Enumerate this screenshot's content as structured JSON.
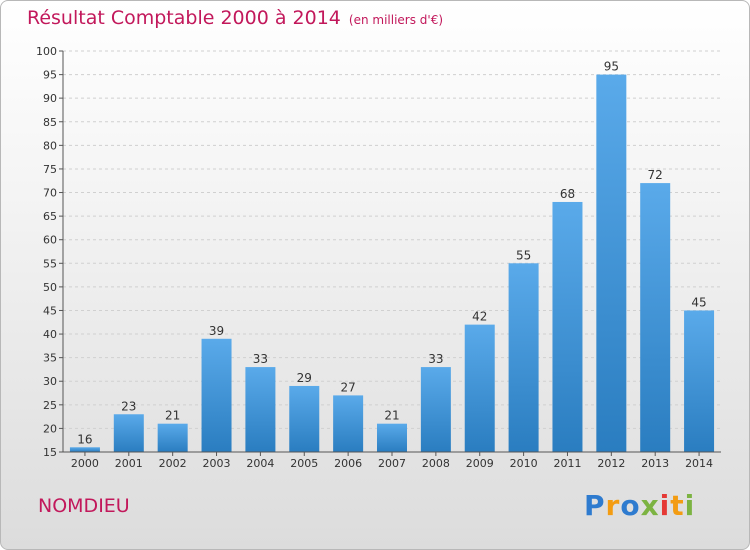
{
  "header": {
    "title": "Résultat Comptable 2000 à 2014",
    "subtitle": "(en milliers d'€)"
  },
  "location": "NOMDIEU",
  "brand": {
    "letters": [
      "P",
      "r",
      "o",
      "x",
      "i",
      "t",
      "i"
    ],
    "colors": [
      "#2e7bcf",
      "#f39c12",
      "#2e7bcf",
      "#7cb342",
      "#e53935",
      "#f39c12",
      "#7cb342"
    ]
  },
  "colors": {
    "bar_light": "#5aaaea",
    "bar_dark": "#2a7dc0",
    "axis": "#555555",
    "grid": "#d0d0d0",
    "text": "#333333"
  },
  "chart_data": {
    "type": "bar",
    "categories": [
      "2000",
      "2001",
      "2002",
      "2003",
      "2004",
      "2005",
      "2006",
      "2007",
      "2008",
      "2009",
      "2010",
      "2011",
      "2012",
      "2013",
      "2014"
    ],
    "values": [
      16,
      23,
      21,
      39,
      33,
      29,
      27,
      21,
      33,
      42,
      55,
      68,
      95,
      72,
      45
    ],
    "ylim": [
      15,
      100
    ],
    "yticks": [
      15,
      20,
      25,
      30,
      35,
      40,
      45,
      50,
      55,
      60,
      65,
      70,
      75,
      80,
      85,
      90,
      95,
      100
    ],
    "grid": true
  }
}
